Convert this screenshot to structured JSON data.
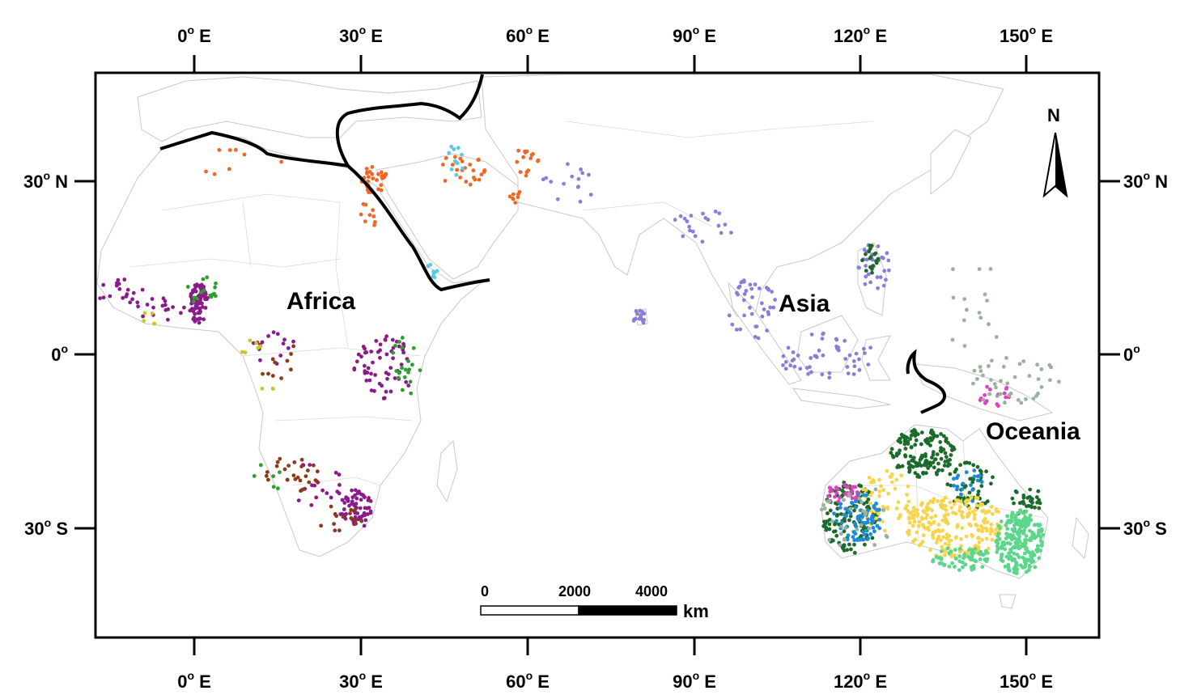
{
  "lon_ticks": [
    {
      "deg": "0",
      "suffix": "E"
    },
    {
      "deg": "30",
      "suffix": "E"
    },
    {
      "deg": "60",
      "suffix": "E"
    },
    {
      "deg": "90",
      "suffix": "E"
    },
    {
      "deg": "120",
      "suffix": "E"
    },
    {
      "deg": "150",
      "suffix": "E"
    }
  ],
  "lat_ticks": [
    {
      "deg": "30",
      "suffix": "N"
    },
    {
      "deg": "0",
      "suffix": ""
    },
    {
      "deg": "30",
      "suffix": "S"
    }
  ],
  "regions": {
    "africa": "Africa",
    "asia": "Asia",
    "oceania": "Oceania"
  },
  "north_arrow": "N",
  "scale_bar": {
    "labels": [
      "0",
      "2000",
      "4000"
    ],
    "unit": "km"
  },
  "colors": {
    "orange": "#f26522",
    "light_blue": "#5bc8e8",
    "purple": "#8b1a8b",
    "green": "#2ca02c",
    "olive": "#c8c81e",
    "brown": "#8b3a1a",
    "lavender": "#8a7fd8",
    "dark_green": "#1b6b2b",
    "yellow": "#f7d44c",
    "light_green": "#5cd68a",
    "blue": "#1f8ad8",
    "magenta": "#e040c0",
    "grey_green": "#9ab0a0"
  }
}
